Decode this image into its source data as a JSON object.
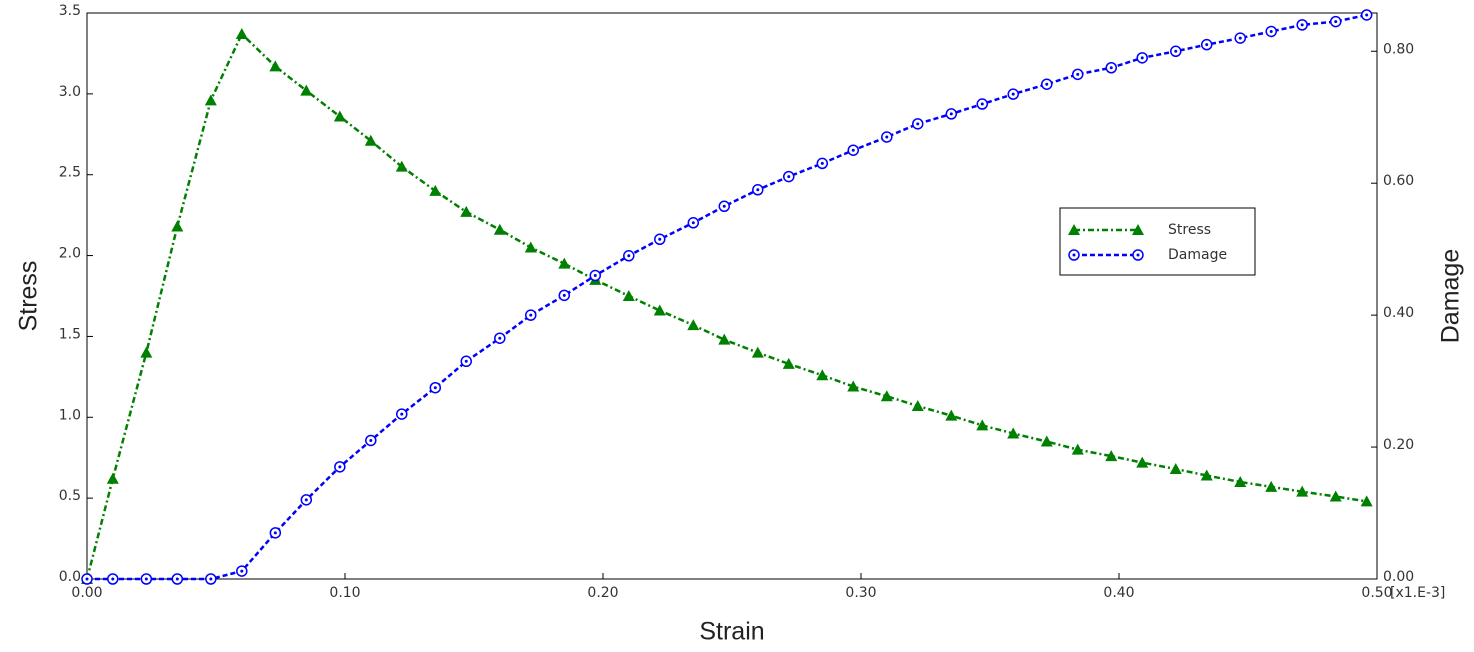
{
  "chart_data": {
    "type": "line",
    "xlabel": "Strain",
    "ylabel": "Stress",
    "y2label": "Damage",
    "x_scale_label": "[x1.E-3]",
    "x": [
      0,
      0.01,
      0.023,
      0.035,
      0.048,
      0.06,
      0.073,
      0.085,
      0.098,
      0.11,
      0.122,
      0.135,
      0.147,
      0.16,
      0.172,
      0.185,
      0.197,
      0.21,
      0.222,
      0.235,
      0.247,
      0.26,
      0.272,
      0.285,
      0.297,
      0.31,
      0.322,
      0.335,
      0.347,
      0.359,
      0.372,
      0.384,
      0.397,
      0.409,
      0.422,
      0.434,
      0.447,
      0.459,
      0.471,
      0.484,
      0.496
    ],
    "series": [
      {
        "name": "Stress",
        "color": "#008000",
        "marker": "triangle",
        "dash": "dashdot",
        "axis": "y",
        "values": [
          0,
          0.62,
          1.4,
          2.18,
          2.96,
          3.37,
          3.17,
          3.02,
          2.86,
          2.71,
          2.55,
          2.4,
          2.27,
          2.16,
          2.05,
          1.95,
          1.85,
          1.75,
          1.66,
          1.57,
          1.48,
          1.4,
          1.33,
          1.26,
          1.19,
          1.13,
          1.07,
          1.01,
          0.95,
          0.9,
          0.85,
          0.8,
          0.76,
          0.72,
          0.68,
          0.64,
          0.6,
          0.57,
          0.54,
          0.51,
          0.48
        ]
      },
      {
        "name": "Damage",
        "color": "#0000ff",
        "marker": "circle",
        "dash": "dashed",
        "axis": "y2",
        "values": [
          0,
          0,
          0,
          0,
          0,
          0.012,
          0.07,
          0.12,
          0.17,
          0.21,
          0.25,
          0.29,
          0.33,
          0.365,
          0.4,
          0.43,
          0.46,
          0.49,
          0.515,
          0.54,
          0.565,
          0.59,
          0.61,
          0.63,
          0.65,
          0.67,
          0.69,
          0.705,
          0.72,
          0.735,
          0.75,
          0.765,
          0.775,
          0.79,
          0.8,
          0.81,
          0.82,
          0.83,
          0.84,
          0.845,
          0.855
        ]
      }
    ],
    "xlim": [
      0,
      0.5
    ],
    "xticks": [
      {
        "value": 0,
        "label": "0.00"
      },
      {
        "value": 0.1,
        "label": "0.10"
      },
      {
        "value": 0.2,
        "label": "0.20"
      },
      {
        "value": 0.3,
        "label": "0.30"
      },
      {
        "value": 0.4,
        "label": "0.40"
      },
      {
        "value": 0.5,
        "label": "0.50"
      }
    ],
    "ylim": [
      0,
      3.5
    ],
    "yticks": [
      {
        "value": 0,
        "label": "0.0"
      },
      0.5,
      {
        "value": 1,
        "label": "1.0"
      },
      1.5,
      {
        "value": 2,
        "label": "2.0"
      },
      2.5,
      {
        "value": 3,
        "label": "3.0"
      },
      3.5
    ],
    "y2lim": [
      0,
      0.858
    ],
    "y2ticks": [
      {
        "value": 0,
        "label": "0.00"
      },
      {
        "value": 0.2,
        "label": "0.20"
      },
      {
        "value": 0.4,
        "label": "0.40"
      },
      {
        "value": 0.6,
        "label": "0.60"
      },
      {
        "value": 0.8,
        "label": "0.80"
      }
    ],
    "legend": "upper right"
  }
}
